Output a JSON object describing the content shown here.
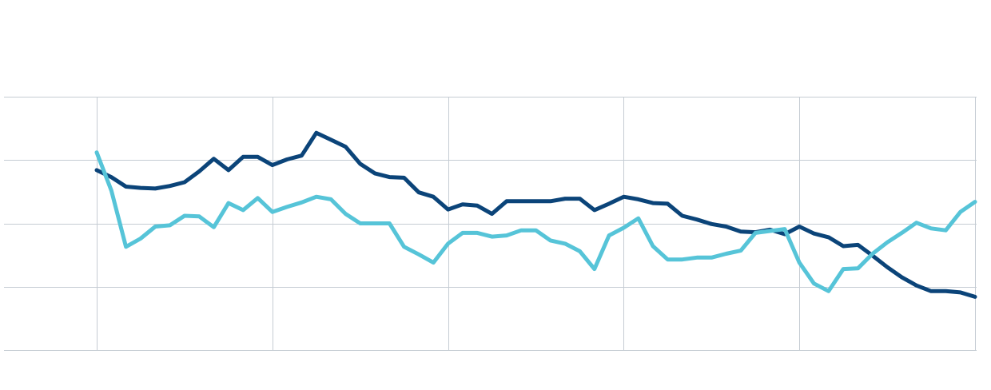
{
  "chart_data": {
    "type": "line",
    "title": "",
    "xlabel": "",
    "ylabel": "",
    "ylim": [
      0,
      4
    ],
    "xlim": [
      0,
      60
    ],
    "grid": true,
    "gridlines_y": [
      0,
      1,
      2,
      3,
      4
    ],
    "gridlines_x": [
      0,
      12,
      24,
      36,
      48,
      60
    ],
    "series": [
      {
        "color": "#0b4479",
        "x": [
          0,
          1,
          2,
          3,
          4,
          5,
          6,
          7,
          8,
          9,
          10,
          11,
          12,
          13,
          14,
          15,
          16,
          17,
          18,
          19,
          20,
          21,
          22,
          23,
          24,
          25,
          26,
          27,
          28,
          29,
          30,
          31,
          32,
          33,
          34,
          35,
          36,
          37,
          38,
          39,
          40,
          41,
          42,
          43,
          44,
          45,
          46,
          47,
          48,
          49,
          50,
          51,
          52,
          53,
          54,
          55,
          56,
          57,
          58,
          59,
          60
        ],
        "values": [
          2.84,
          2.73,
          2.58,
          2.56,
          2.55,
          2.59,
          2.65,
          2.82,
          3.02,
          2.84,
          3.05,
          3.05,
          2.92,
          3.01,
          3.07,
          3.43,
          3.32,
          3.21,
          2.94,
          2.79,
          2.73,
          2.72,
          2.49,
          2.42,
          2.22,
          2.3,
          2.28,
          2.15,
          2.35,
          2.35,
          2.35,
          2.35,
          2.39,
          2.39,
          2.21,
          2.31,
          2.42,
          2.38,
          2.32,
          2.31,
          2.12,
          2.06,
          1.99,
          1.95,
          1.87,
          1.86,
          1.9,
          1.83,
          1.95,
          1.84,
          1.78,
          1.64,
          1.66,
          1.49,
          1.31,
          1.15,
          1.02,
          0.93,
          0.93,
          0.91,
          0.84
        ]
      },
      {
        "color": "#56c4d8",
        "x": [
          0,
          1,
          2,
          3,
          4,
          5,
          6,
          7,
          8,
          9,
          10,
          11,
          12,
          13,
          14,
          15,
          16,
          17,
          18,
          19,
          20,
          21,
          22,
          23,
          24,
          25,
          26,
          27,
          28,
          29,
          30,
          31,
          32,
          33,
          34,
          35,
          36,
          37,
          38,
          39,
          40,
          41,
          42,
          43,
          44,
          45,
          46,
          47,
          48,
          49,
          50,
          51,
          52,
          53,
          54,
          55,
          56,
          57,
          58,
          59,
          60
        ],
        "values": [
          3.12,
          2.52,
          1.63,
          1.76,
          1.95,
          1.97,
          2.12,
          2.11,
          1.94,
          2.32,
          2.21,
          2.4,
          2.18,
          2.26,
          2.33,
          2.42,
          2.38,
          2.15,
          2.0,
          2.0,
          2.0,
          1.63,
          1.51,
          1.38,
          1.68,
          1.85,
          1.85,
          1.79,
          1.81,
          1.89,
          1.89,
          1.73,
          1.68,
          1.56,
          1.28,
          1.81,
          1.93,
          2.08,
          1.64,
          1.43,
          1.43,
          1.46,
          1.46,
          1.52,
          1.57,
          1.85,
          1.88,
          1.91,
          1.38,
          1.05,
          0.93,
          1.28,
          1.29,
          1.52,
          1.7,
          1.85,
          2.01,
          1.92,
          1.89,
          2.18,
          2.34
        ]
      }
    ]
  }
}
